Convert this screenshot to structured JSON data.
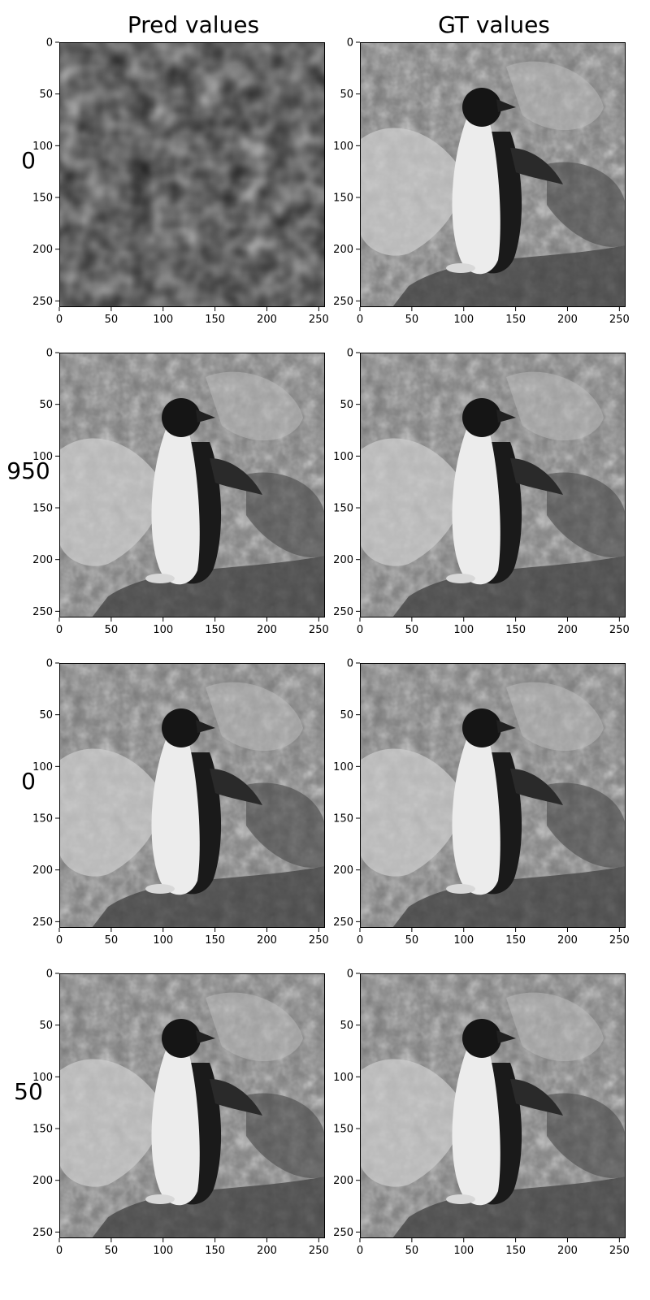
{
  "columns": {
    "pred": "Pred values",
    "gt": "GT values"
  },
  "rows": [
    {
      "label": "0"
    },
    {
      "label": "950"
    },
    {
      "label": "0"
    },
    {
      "label": "50"
    }
  ],
  "chart_data": {
    "type": "heatmap",
    "layout": "grid 4 rows x 2 columns of grayscale images",
    "column_titles": [
      "Pred values",
      "GT values"
    ],
    "row_labels": [
      "0",
      "950",
      "0",
      "50"
    ],
    "image_size": [
      256,
      256
    ],
    "colormap": "gray",
    "xlim": [
      0,
      256
    ],
    "ylim": [
      256,
      0
    ],
    "xticks": [
      0,
      50,
      100,
      150,
      200,
      250
    ],
    "yticks": [
      0,
      50,
      100,
      150,
      200,
      250
    ],
    "grid": false,
    "panels": [
      {
        "row": 0,
        "col": "Pred values",
        "content": "noise"
      },
      {
        "row": 0,
        "col": "GT values",
        "content": "penguin"
      },
      {
        "row": 1,
        "col": "Pred values",
        "content": "penguin"
      },
      {
        "row": 1,
        "col": "GT values",
        "content": "penguin"
      },
      {
        "row": 2,
        "col": "Pred values",
        "content": "penguin"
      },
      {
        "row": 2,
        "col": "GT values",
        "content": "penguin"
      },
      {
        "row": 3,
        "col": "Pred values",
        "content": "penguin"
      },
      {
        "row": 3,
        "col": "GT values",
        "content": "penguin"
      }
    ]
  }
}
